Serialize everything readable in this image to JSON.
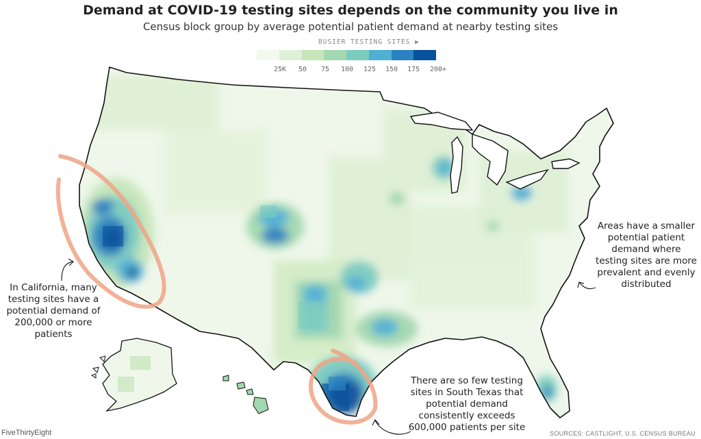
{
  "title": "Demand at COVID-19 testing sites depends on the community you live in",
  "subtitle": "Census block group by average potential patient demand at nearby testing sites",
  "legend": {
    "heading": "BUSIER TESTING SITES ▶",
    "tick_labels": [
      "25K",
      "50",
      "75",
      "100",
      "125",
      "150",
      "175",
      "200+"
    ],
    "colors": [
      "#f2f9ee",
      "#dff0d6",
      "#c6e5b9",
      "#a3d8b0",
      "#7ccbbf",
      "#4fb0d4",
      "#2b82c0",
      "#08519c"
    ]
  },
  "annotations": {
    "california": "In California, many testing sites have a potential demand of 200,000 or more patients",
    "east": "Areas have a smaller potential patient demand where testing sites are more prevalent and evenly distributed",
    "south_texas": "There are so few testing sites in South Texas that potential demand consistently exceeds 600,000 patients per site"
  },
  "highlight_color": "#f0a385",
  "credit": "FiveThirtyEight",
  "sources": "SOURCES: CASTLIGHT, U.S. CENSUS BUREAU"
}
